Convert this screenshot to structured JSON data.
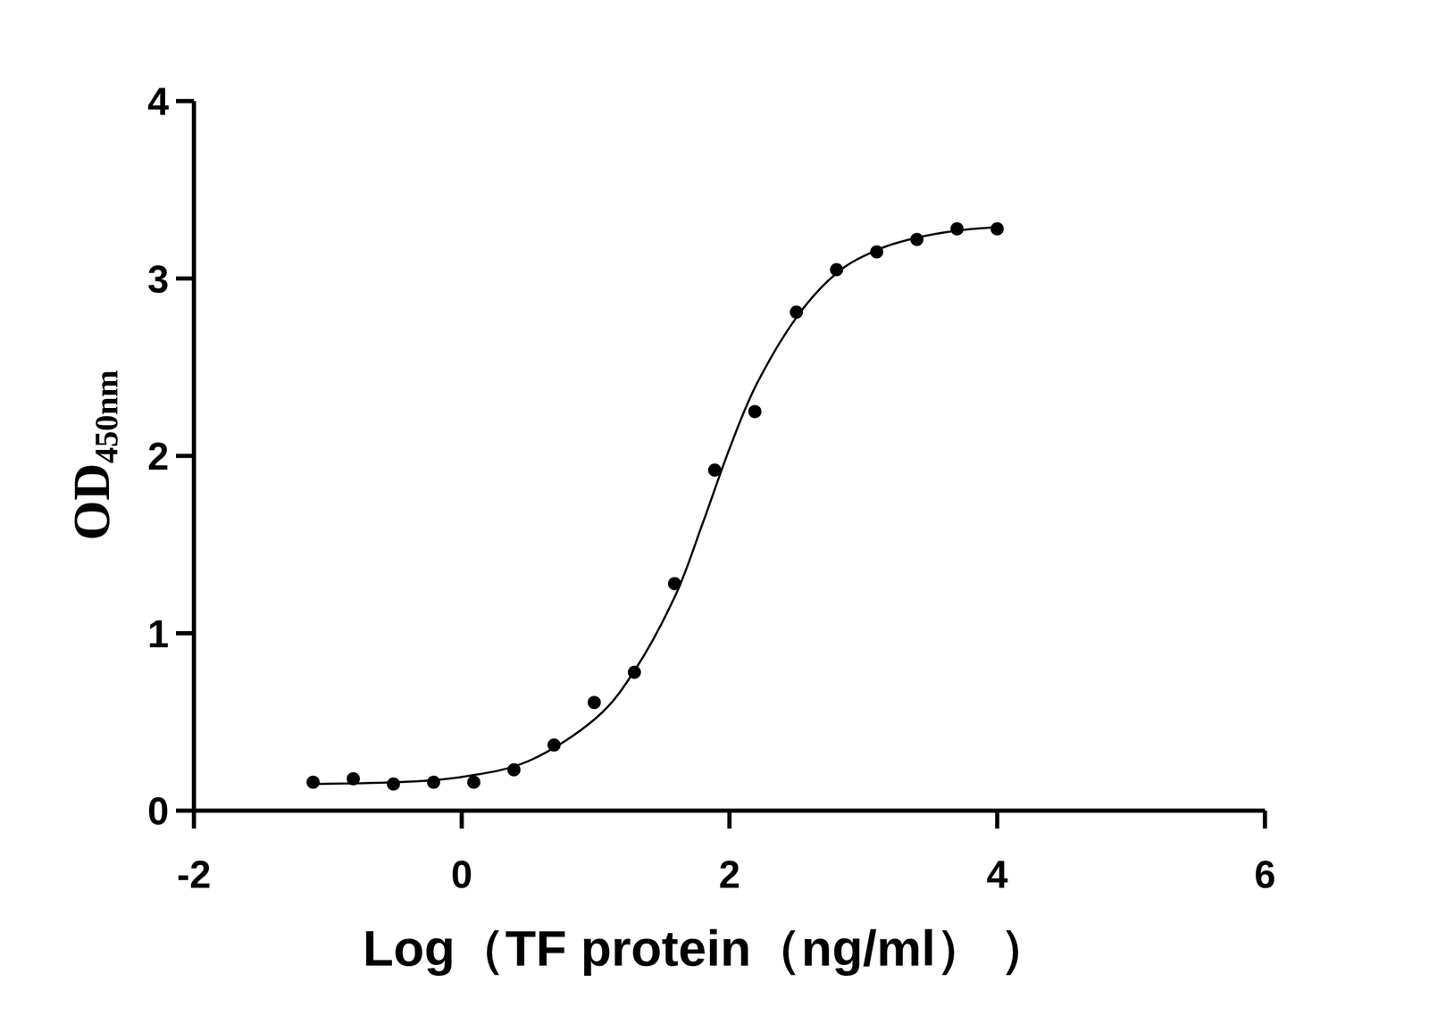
{
  "chart_data": {
    "type": "scatter",
    "x_label": "Log（TF protein（ng/ml）  ）",
    "y_label": "OD450nm",
    "xlim": [
      -2,
      6
    ],
    "xticks": [
      -2,
      0,
      2,
      4,
      6
    ],
    "ylim": [
      0,
      4
    ],
    "yticks": [
      0,
      1,
      2,
      3,
      4
    ],
    "series": [
      {
        "type": "scatter",
        "marker": "circle",
        "color": "#000000",
        "x": [
          -1.11,
          -0.81,
          -0.51,
          -0.21,
          0.09,
          0.39,
          0.69,
          0.99,
          1.29,
          1.59,
          1.89,
          2.19,
          2.5,
          2.8,
          3.1,
          3.4,
          3.7,
          4.0
        ],
        "values": [
          0.16,
          0.18,
          0.15,
          0.16,
          0.16,
          0.23,
          0.37,
          0.61,
          0.78,
          1.28,
          1.92,
          2.25,
          2.81,
          3.05,
          3.15,
          3.22,
          3.28,
          3.28
        ]
      },
      {
        "type": "line",
        "line_style": "solid",
        "color": "#000000",
        "x": [
          -1.11,
          -0.5,
          0.0,
          0.5,
          1.0,
          1.3,
          1.6,
          1.8,
          2.0,
          2.2,
          2.5,
          2.8,
          3.1,
          3.4,
          3.7,
          4.0
        ],
        "values": [
          0.15,
          0.16,
          0.19,
          0.28,
          0.52,
          0.8,
          1.22,
          1.62,
          2.04,
          2.4,
          2.78,
          3.03,
          3.16,
          3.23,
          3.27,
          3.29
        ]
      }
    ]
  }
}
